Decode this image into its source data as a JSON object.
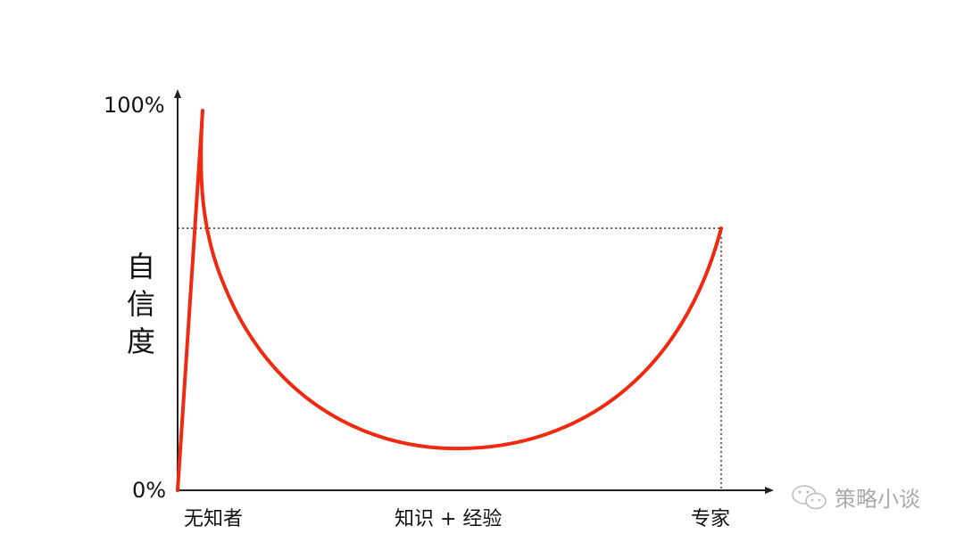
{
  "chart_data": {
    "type": "line",
    "title": "",
    "ylabel": "自信度",
    "xlabel": "",
    "y_ticks": [
      "0%",
      "100%"
    ],
    "ylim": [
      0,
      100
    ],
    "x_labels": [
      "无知者",
      "知识 + 经验",
      "专家"
    ],
    "grid": false,
    "series": [
      {
        "points": [
          {
            "x": "无知者",
            "y": 0
          },
          {
            "x": "peak",
            "y": 100
          },
          {
            "x": "知识 + 经验",
            "y": 11
          },
          {
            "x": "专家",
            "y": 69
          }
        ],
        "color": "#f02a10"
      }
    ],
    "reference_level": 69,
    "reference_line_style": "dotted"
  },
  "watermark": {
    "text": "策略小谈",
    "icon": "wechat-icon"
  },
  "colors": {
    "curve": "#f02a10",
    "axis": "#222222"
  }
}
